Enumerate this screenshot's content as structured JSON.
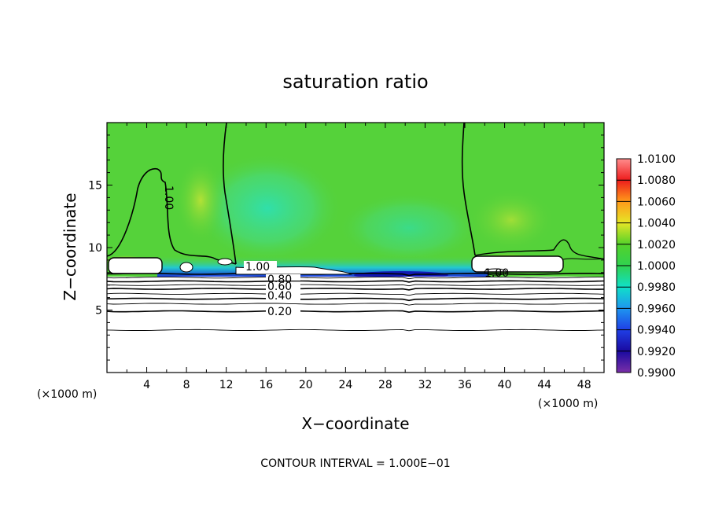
{
  "chart_data": {
    "type": "heatmap",
    "title": "saturation ratio",
    "xlabel": "X−coordinate",
    "ylabel": "Z−coordinate",
    "x_unit": "(×1000 m)",
    "z_unit": "(×1000 m)",
    "xlim": [
      0,
      50
    ],
    "zlim": [
      0,
      20
    ],
    "x_ticks": [
      4,
      8,
      12,
      16,
      20,
      24,
      28,
      32,
      36,
      40,
      44,
      48
    ],
    "x_tick_labels": [
      "4",
      "8",
      "12",
      "16",
      "20",
      "24",
      "28",
      "32",
      "36",
      "40",
      "44",
      "48"
    ],
    "z_ticks": [
      5,
      10,
      15
    ],
    "z_tick_labels": [
      "5",
      "10",
      "15"
    ],
    "colorbar": {
      "levels": [
        0.99,
        0.992,
        0.994,
        0.996,
        0.998,
        1.0,
        1.002,
        1.004,
        1.006,
        1.008,
        1.01
      ],
      "labels": [
        "0.9900",
        "0.9920",
        "0.9940",
        "0.9960",
        "0.9980",
        "1.0000",
        "1.0020",
        "1.0040",
        "1.0060",
        "1.0080",
        "1.0100"
      ],
      "colors": [
        "#7a2fa8",
        "#1a0aa0",
        "#1f3fe6",
        "#1e96f0",
        "#10e0c8",
        "#30d250",
        "#55d22a",
        "#e6e626",
        "#ff9a1a",
        "#ee1c1c",
        "#ff8c8c"
      ]
    },
    "contour_interval_text": "CONTOUR INTERVAL = 1.000E−01",
    "contour_labels": [
      "1.00",
      "1.00",
      "1.00",
      "0.80",
      "0.60",
      "0.40",
      "0.20"
    ],
    "contour_levels": [
      0.1,
      0.2,
      0.3,
      0.4,
      0.5,
      0.6,
      0.7,
      0.8,
      0.9,
      1.0
    ],
    "contour_heights_km": [
      3.4,
      4.9,
      5.5,
      5.9,
      6.3,
      6.7,
      7.0,
      7.3,
      7.6,
      7.9
    ],
    "cloud_layer_km": [
      7.9,
      9.3
    ],
    "field_background": 1.0
  }
}
